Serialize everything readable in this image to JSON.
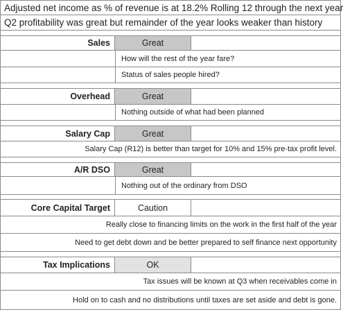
{
  "header": {
    "line1": "Adjusted net income as % of revenue is at 18.2% Rolling 12 through the next year",
    "line2": "Q2 profitability was great but remainder of the year looks weaker than history"
  },
  "sections": {
    "sales": {
      "label": "Sales",
      "status": "Great",
      "notes": [
        "How will the rest of the year fare?",
        "Status of sales people hired?"
      ]
    },
    "overhead": {
      "label": "Overhead",
      "status": "Great",
      "notes": [
        "Nothing outside of what had been planned"
      ]
    },
    "salary_cap": {
      "label": "Salary Cap",
      "status": "Great",
      "notes": [
        "Salary Cap (R12) is better than target for 10% and 15% pre-tax profit level."
      ]
    },
    "ar_dso": {
      "label": "A/R DSO",
      "status": "Great",
      "notes": [
        "Nothing out of the ordinary from DSO"
      ]
    },
    "core_capital": {
      "label": "Core Capital Target",
      "status": "Caution",
      "notes": [
        "Really close to financing limits on the work in the first half of the year",
        "Need to get debt down and be better prepared to self finance next opportunity"
      ]
    },
    "tax": {
      "label": "Tax Implications",
      "status": "OK",
      "notes": [
        "Tax issues will be known at Q3 when receivables come in",
        "Hold on to cash and no distributions until taxes are set aside and debt is gone."
      ]
    }
  },
  "colors": {
    "great": "#c7c7c7",
    "ok": "#e2e2e2",
    "caution": "#ffffff",
    "grid": "#8a8a8a"
  }
}
